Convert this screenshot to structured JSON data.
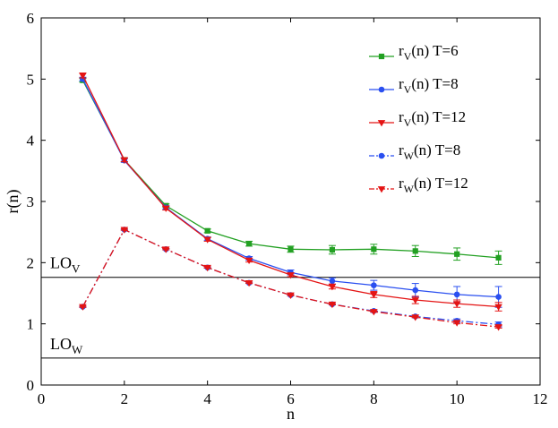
{
  "chart_data": {
    "type": "line",
    "title": "",
    "xlabel": "n",
    "ylabel": "r(n)",
    "xlim": [
      0,
      12
    ],
    "ylim": [
      0,
      6
    ],
    "xticks": [
      0,
      2,
      4,
      6,
      8,
      10,
      12
    ],
    "yticks": [
      0,
      1,
      2,
      3,
      4,
      5,
      6
    ],
    "grid": false,
    "legend_position": "top-right",
    "series": [
      {
        "name": "rV(n) T=6",
        "legend_main": "r",
        "legend_sub": "V",
        "legend_tail": "(n) T=6",
        "color": "#22a022",
        "dash": "solid",
        "marker": "square",
        "x": [
          1,
          2,
          3,
          4,
          5,
          6,
          7,
          8,
          9,
          10,
          11
        ],
        "y": [
          4.98,
          3.68,
          2.93,
          2.52,
          2.31,
          2.22,
          2.21,
          2.22,
          2.19,
          2.14,
          2.08
        ],
        "err": [
          0.03,
          0.03,
          0.03,
          0.03,
          0.04,
          0.05,
          0.07,
          0.08,
          0.09,
          0.1,
          0.11
        ]
      },
      {
        "name": "rV(n) T=8",
        "legend_main": "r",
        "legend_sub": "V",
        "legend_tail": "(n) T=8",
        "color": "#2a4ff0",
        "dash": "solid",
        "marker": "circle",
        "x": [
          1,
          2,
          3,
          4,
          5,
          6,
          7,
          8,
          9,
          10,
          11
        ],
        "y": [
          5.0,
          3.67,
          2.9,
          2.39,
          2.07,
          1.84,
          1.7,
          1.63,
          1.55,
          1.48,
          1.44
        ],
        "err": [
          0.03,
          0.03,
          0.03,
          0.03,
          0.03,
          0.04,
          0.05,
          0.08,
          0.11,
          0.13,
          0.17
        ]
      },
      {
        "name": "rV(n) T=12",
        "legend_main": "r",
        "legend_sub": "V",
        "legend_tail": "(n) T=12",
        "color": "#e41414",
        "dash": "solid",
        "marker": "triangle-down",
        "x": [
          1,
          2,
          3,
          4,
          5,
          6,
          7,
          8,
          9,
          10,
          11
        ],
        "y": [
          5.06,
          3.68,
          2.89,
          2.38,
          2.04,
          1.8,
          1.61,
          1.48,
          1.39,
          1.33,
          1.28
        ],
        "err": [
          0.04,
          0.03,
          0.03,
          0.03,
          0.03,
          0.03,
          0.04,
          0.05,
          0.06,
          0.06,
          0.07
        ]
      },
      {
        "name": "rW(n) T=8",
        "legend_main": "r",
        "legend_sub": "W",
        "legend_tail": "(n) T=8",
        "color": "#2a4ff0",
        "dash": "dashdot",
        "marker": "circle",
        "x": [
          1,
          2,
          3,
          4,
          5,
          6,
          7,
          8,
          9,
          10,
          11
        ],
        "y": [
          1.28,
          2.54,
          2.22,
          1.92,
          1.67,
          1.47,
          1.32,
          1.21,
          1.12,
          1.05,
          0.99
        ],
        "err": [
          0.01,
          0.01,
          0.01,
          0.01,
          0.01,
          0.01,
          0.01,
          0.02,
          0.02,
          0.03,
          0.04
        ]
      },
      {
        "name": "rW(n) T=12",
        "legend_main": "r",
        "legend_sub": "W",
        "legend_tail": "(n) T=12",
        "color": "#e41414",
        "dash": "dashdot",
        "marker": "triangle-down",
        "x": [
          1,
          2,
          3,
          4,
          5,
          6,
          7,
          8,
          9,
          10,
          11
        ],
        "y": [
          1.28,
          2.54,
          2.22,
          1.92,
          1.67,
          1.47,
          1.32,
          1.2,
          1.11,
          1.02,
          0.95
        ],
        "err": [
          0.01,
          0.01,
          0.01,
          0.01,
          0.01,
          0.01,
          0.01,
          0.01,
          0.01,
          0.02,
          0.02
        ]
      }
    ],
    "reference_lines": [
      {
        "name": "LOV",
        "label_main": "LO",
        "label_sub": "V",
        "y": 1.76
      },
      {
        "name": "LOW",
        "label_main": "LO",
        "label_sub": "W",
        "y": 0.44
      }
    ]
  }
}
